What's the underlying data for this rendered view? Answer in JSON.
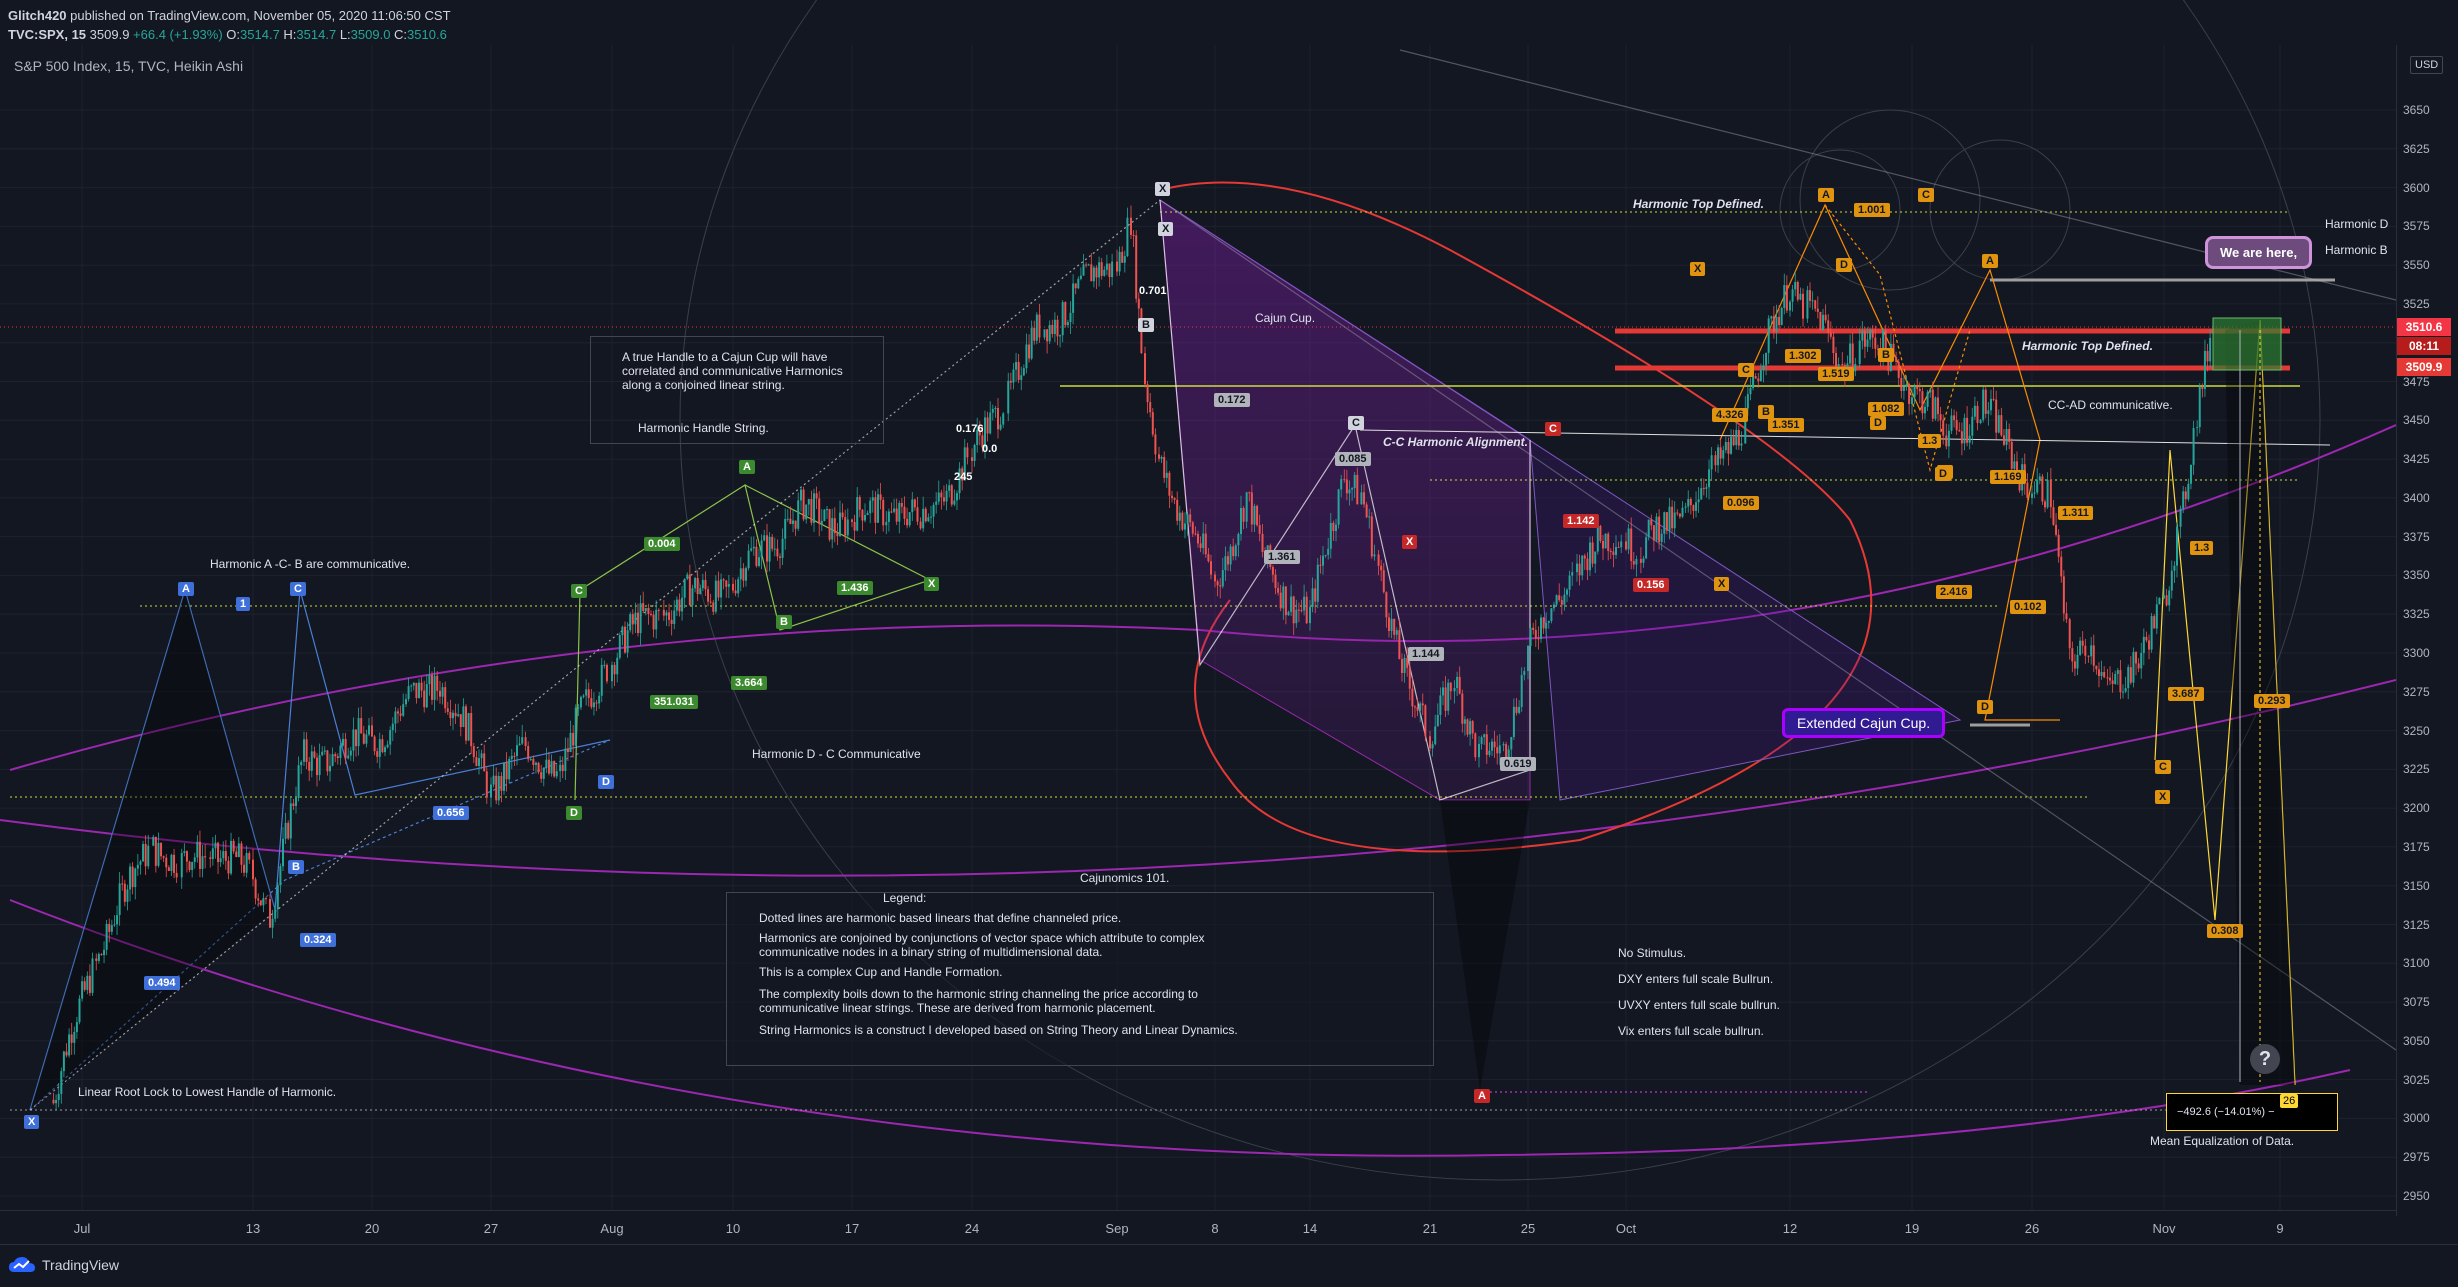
{
  "header": {
    "user": "Glitch420",
    "published": " published on TradingView.com, November 05, 2020 11:06:50 CST",
    "symbol": "TVC:SPX, 15",
    "price": "3509.9",
    "change": "+66.4 (+1.93%)",
    "o_label": "O:",
    "o": "3514.7",
    "h_label": "H:",
    "h": "3514.7",
    "l_label": "L:",
    "l": "3509.0",
    "c_label": "C:",
    "c": "3510.6"
  },
  "subtitle": "S&P 500 Index, 15, TVC, Heikin Ashi",
  "currency": "USD",
  "footer": {
    "brand": "TradingView"
  },
  "price_tags": {
    "last": "3510.6",
    "countdown": "08:11",
    "prev": "3509.9",
    "colors": {
      "last": "#f23645",
      "countdown": "#d32f2f",
      "prev": "#e53935"
    }
  },
  "annotations": {
    "handle_note": "A true Handle to a Cajun Cup will have correlated and communicative Harmonics along a conjoined linear string.",
    "harmonic_handle_string": "Harmonic Handle String.",
    "harmonic_acb": "Harmonic A -C- B are communicative.",
    "harmonic_dc": "Harmonic D - C Communicative",
    "linear_root": "Linear Root Lock to Lowest Handle of Harmonic.",
    "cajun_cup": "Cajun Cup.",
    "cc_alignment": "C-C Harmonic Alignment.",
    "top_defined_1": "Harmonic Top Defined.",
    "top_defined_2": "Harmonic Top Defined.",
    "cc_ad": "CC-AD communicative.",
    "extended_cup": "Extended Cajun Cup.",
    "we_are_here": "We are here,",
    "right_cut_1": "Harmonic D",
    "right_cut_2": "Harmonic B",
    "cajunomics": "Cajunomics 101.",
    "mean_eq": "Mean Equalization of Data.",
    "measure": "−492.6 (−14.01%) −",
    "measure_tail": "26",
    "stimulus": [
      "No Stimulus.",
      "DXY enters full scale Bullrun.",
      "UVXY enters full scale bullrun.",
      "Vix enters full scale bullrun."
    ],
    "question": "?"
  },
  "legend": {
    "title": "Legend:",
    "lines": [
      "Dotted lines are harmonic based linears that define channeled price.",
      "Harmonics are conjoined by conjunctions of vector space which attribute to complex",
      "communicative nodes in a binary string of multidimensional data.",
      "This is a complex Cup and Handle Formation.",
      "The complexity boils down to the harmonic string channeling the price according to",
      "communicative linear strings. These are derived from harmonic placement.",
      "String Harmonics is a construct I developed based on String Theory and Linear Dynamics."
    ]
  },
  "pattern_labels": {
    "blue": [
      {
        "t": "A"
      },
      {
        "t": "1"
      },
      {
        "t": "C"
      },
      {
        "t": "B"
      },
      {
        "t": "D"
      },
      {
        "t": "X"
      }
    ],
    "blue_ratios": [
      "0.494",
      "0.324",
      "0.656"
    ],
    "green": [
      {
        "t": "C"
      },
      {
        "t": "A"
      },
      {
        "t": "X"
      },
      {
        "t": "B"
      },
      {
        "t": "D"
      }
    ],
    "green_ratios": [
      "0.004",
      "1.436",
      "3.664",
      "351.031"
    ],
    "white_ratios": [
      "0.701",
      "0.176",
      "0.0",
      "245"
    ],
    "white_letters": [
      "X",
      "X",
      "B",
      "C"
    ],
    "gray_ratios": [
      "0.172",
      "0.085",
      "1.361",
      "1.144",
      "0.619"
    ],
    "red_letters": [
      "C",
      "A",
      "X"
    ],
    "red_ratios": [
      "1.142",
      "0.156"
    ],
    "orange_letters": [
      "A",
      "C",
      "D",
      "B",
      "C",
      "X",
      "D",
      "A",
      "B",
      "C",
      "D",
      "C",
      "X",
      "D",
      "X"
    ],
    "orange_ratios": [
      "1.001",
      "4.326",
      "0.096",
      "1.519",
      "1.302",
      "1.351",
      "1.082",
      "1.3",
      "1.169",
      "2.416",
      "0.102",
      "1.311",
      "3.687",
      "0.293",
      "0.308",
      "1.3"
    ]
  },
  "chart_data": {
    "type": "candlestick",
    "style": "Heikin Ashi",
    "symbol": "S&P 500 Index",
    "interval": "15",
    "yaxis": {
      "ticks": [
        2950,
        2975,
        3000,
        3025,
        3050,
        3075,
        3100,
        3125,
        3150,
        3175,
        3200,
        3225,
        3250,
        3275,
        3300,
        3325,
        3350,
        3375,
        3400,
        3425,
        3450,
        3475,
        3500,
        3525,
        3550,
        3575,
        3600,
        3625,
        3650
      ],
      "range": [
        2935,
        3668
      ],
      "scale": "linear",
      "position": "right"
    },
    "xaxis": {
      "ticks": [
        "Jul",
        "13",
        "20",
        "27",
        "Aug",
        "10",
        "17",
        "24",
        "Sep",
        "8",
        "14",
        "21",
        "25",
        "Oct",
        "12",
        "19",
        "26",
        "Nov",
        "9"
      ],
      "tick_dates": [
        "2020-07-01",
        "2020-07-13",
        "2020-07-20",
        "2020-07-27",
        "2020-08-03",
        "2020-08-10",
        "2020-08-17",
        "2020-08-24",
        "2020-09-01",
        "2020-09-08",
        "2020-09-14",
        "2020-09-21",
        "2020-09-25",
        "2020-10-01",
        "2020-10-12",
        "2020-10-19",
        "2020-10-26",
        "2020-11-02",
        "2020-11-09"
      ]
    },
    "path": [
      [
        "2020-06-29",
        3012
      ],
      [
        "2020-07-02",
        3105
      ],
      [
        "2020-07-06",
        3180
      ],
      [
        "2020-07-08",
        3160
      ],
      [
        "2020-07-10",
        3175
      ],
      [
        "2020-07-13",
        3155
      ],
      [
        "2020-07-14",
        3135
      ],
      [
        "2020-07-16",
        3230
      ],
      [
        "2020-07-20",
        3245
      ],
      [
        "2020-07-22",
        3265
      ],
      [
        "2020-07-24",
        3285
      ],
      [
        "2020-07-27",
        3215
      ],
      [
        "2020-07-29",
        3235
      ],
      [
        "2020-07-31",
        3225
      ],
      [
        "2020-08-03",
        3300
      ],
      [
        "2020-08-06",
        3330
      ],
      [
        "2020-08-10",
        3345
      ],
      [
        "2020-08-12",
        3370
      ],
      [
        "2020-08-14",
        3390
      ],
      [
        "2020-08-17",
        3385
      ],
      [
        "2020-08-19",
        3395
      ],
      [
        "2020-08-21",
        3385
      ],
      [
        "2020-08-24",
        3425
      ],
      [
        "2020-08-26",
        3470
      ],
      [
        "2020-08-28",
        3510
      ],
      [
        "2020-09-01",
        3555
      ],
      [
        "2020-09-02",
        3580
      ],
      [
        "2020-09-03",
        3470
      ],
      [
        "2020-09-04",
        3425
      ],
      [
        "2020-09-08",
        3345
      ],
      [
        "2020-09-10",
        3400
      ],
      [
        "2020-09-11",
        3360
      ],
      [
        "2020-09-14",
        3320
      ],
      [
        "2020-09-16",
        3420
      ],
      [
        "2020-09-17",
        3400
      ],
      [
        "2020-09-18",
        3350
      ],
      [
        "2020-09-21",
        3240
      ],
      [
        "2020-09-22",
        3290
      ],
      [
        "2020-09-23",
        3230
      ],
      [
        "2020-09-24",
        3240
      ],
      [
        "2020-09-25",
        3300
      ],
      [
        "2020-09-28",
        3355
      ],
      [
        "2020-10-01",
        3380
      ],
      [
        "2020-10-02",
        3365
      ],
      [
        "2020-10-05",
        3395
      ],
      [
        "2020-10-07",
        3415
      ],
      [
        "2020-10-09",
        3455
      ],
      [
        "2020-10-12",
        3540
      ],
      [
        "2020-10-13",
        3525
      ],
      [
        "2020-10-15",
        3485
      ],
      [
        "2020-10-16",
        3505
      ],
      [
        "2020-10-19",
        3475
      ],
      [
        "2020-10-21",
        3440
      ],
      [
        "2020-10-23",
        3460
      ],
      [
        "2020-10-26",
        3410
      ],
      [
        "2020-10-27",
        3395
      ],
      [
        "2020-10-28",
        3300
      ],
      [
        "2020-10-29",
        3310
      ],
      [
        "2020-10-30",
        3270
      ],
      [
        "2020-11-02",
        3325
      ],
      [
        "2020-11-03",
        3385
      ],
      [
        "2020-11-04",
        3460
      ],
      [
        "2020-11-05",
        3510
      ]
    ],
    "horizontal_levels": [
      3510.6,
      3509.9
    ],
    "last_price": 3510.6
  }
}
